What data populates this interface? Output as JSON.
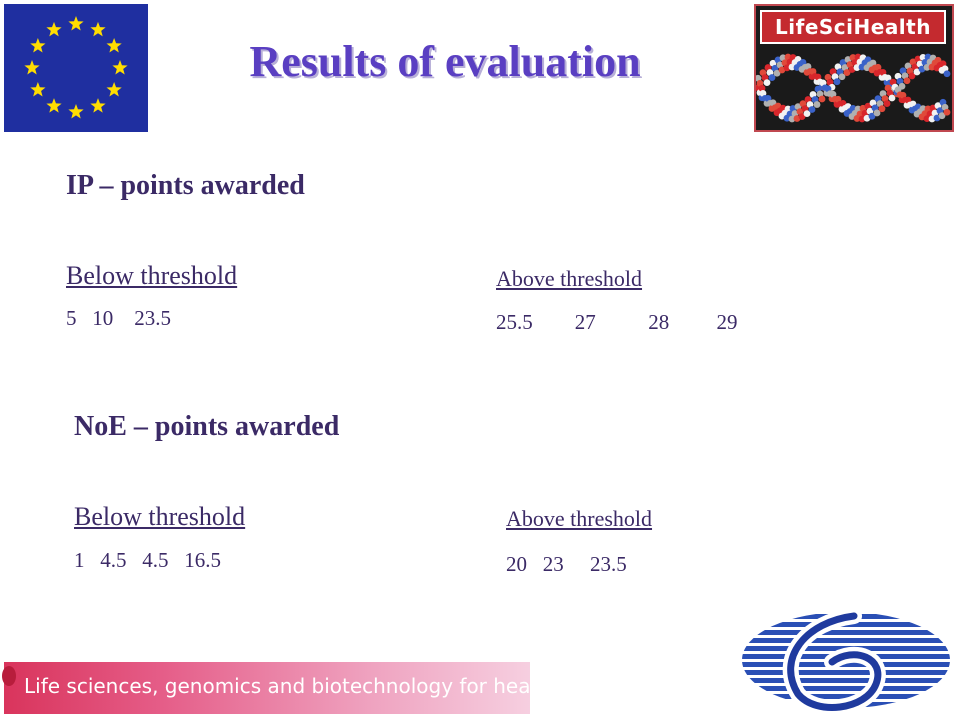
{
  "header": {
    "title": "Results of evaluation",
    "logo_left": "eu-flag",
    "logo_right_text": "LifeSciHealth"
  },
  "ip": {
    "heading": "IP – points awarded",
    "below_label": "Below threshold",
    "below_values": "5   10    23.5",
    "above_label": "Above threshold",
    "above_values": "25.5        27          28         29"
  },
  "noe": {
    "heading": "NoE – points awarded",
    "below_label": "Below threshold",
    "below_values": "1   4.5   4.5   16.5",
    "above_label": "Above threshold",
    "above_values": "20   23     23.5"
  },
  "footer": {
    "banner_text": "Life sciences, genomics and biotechnology for health",
    "logo_right": "fp6-logo"
  },
  "colors": {
    "title": "#5a3fc2",
    "text": "#3b2a66",
    "flag_blue": "#1f2fa0",
    "star_yellow": "#ffdd00",
    "banner_pink": "#d9345c",
    "lsh_red": "#c42a2f"
  }
}
